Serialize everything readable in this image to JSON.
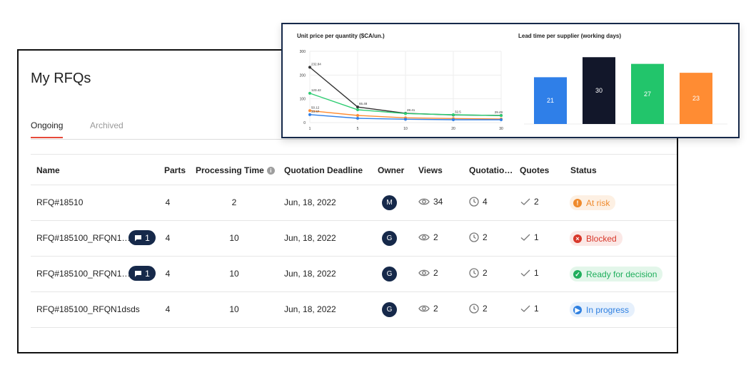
{
  "page": {
    "title": "My RFQs"
  },
  "tabs": [
    {
      "label": "Ongoing"
    },
    {
      "label": "Archived"
    }
  ],
  "table": {
    "headers": {
      "name": "Name",
      "parts": "Parts",
      "processing_time": "Processing Time",
      "deadline": "Quotation Deadline",
      "owner": "Owner",
      "views": "Views",
      "quotations": "Quotatio…",
      "quotes": "Quotes",
      "status": "Status"
    },
    "rows": [
      {
        "name": "RFQ#18510",
        "messages": "",
        "parts": "4",
        "processing_time": "2",
        "deadline": "Jun, 18, 2022",
        "owner": "M",
        "views": "34",
        "quotations": "4",
        "quotes": "2",
        "status": "At risk"
      },
      {
        "name": "RFQ#185100_RFQN1…",
        "messages": "1",
        "parts": "4",
        "processing_time": "10",
        "deadline": "Jun, 18, 2022",
        "owner": "G",
        "views": "2",
        "quotations": "2",
        "quotes": "1",
        "status": "Blocked"
      },
      {
        "name": "RFQ#185100_RFQN1…",
        "messages": "1",
        "parts": "4",
        "processing_time": "10",
        "deadline": "Jun, 18, 2022",
        "owner": "G",
        "views": "2",
        "quotations": "2",
        "quotes": "1",
        "status": "Ready for decision"
      },
      {
        "name": "RFQ#185100_RFQN1dsds",
        "messages": "",
        "parts": "4",
        "processing_time": "10",
        "deadline": "Jun, 18, 2022",
        "owner": "G",
        "views": "2",
        "quotations": "2",
        "quotes": "1",
        "status": "In progress"
      }
    ]
  },
  "status_colors": {
    "at_risk": "#ef8a2c",
    "blocked": "#d8372a",
    "ready": "#1fae5c",
    "in_progress": "#2e7fe0"
  },
  "chart_data": [
    {
      "type": "line",
      "title": "Unit price per quantity ($CA/un.)",
      "x": [
        1,
        5,
        10,
        20,
        30
      ],
      "ylim": [
        0,
        300
      ],
      "yticks": [
        0,
        100,
        200,
        300
      ],
      "grid": true,
      "series": [
        {
          "color": "#333333",
          "values": [
            232.84,
            65.48,
            39,
            32,
            30
          ]
        },
        {
          "color": "#2ecc71",
          "values": [
            123.42,
            54,
            38,
            33,
            29.49
          ]
        },
        {
          "color": "#ff8c33",
          "values": [
            50.12,
            30,
            20,
            17,
            15
          ]
        },
        {
          "color": "#2f7fe8",
          "values": [
            33.47,
            18,
            14,
            12,
            12
          ]
        }
      ],
      "annotations": [
        "232.84",
        "123.42",
        "50.12",
        "33.47",
        "65.48",
        "28.41",
        "32.5",
        "29.49"
      ]
    },
    {
      "type": "bar",
      "title": "Lead time per supplier (working days)",
      "values": [
        21,
        30,
        27,
        23
      ],
      "colors": [
        "#2f7fe8",
        "#12172a",
        "#22c56b",
        "#ff8c33"
      ],
      "ylim": [
        0,
        32
      ]
    }
  ]
}
